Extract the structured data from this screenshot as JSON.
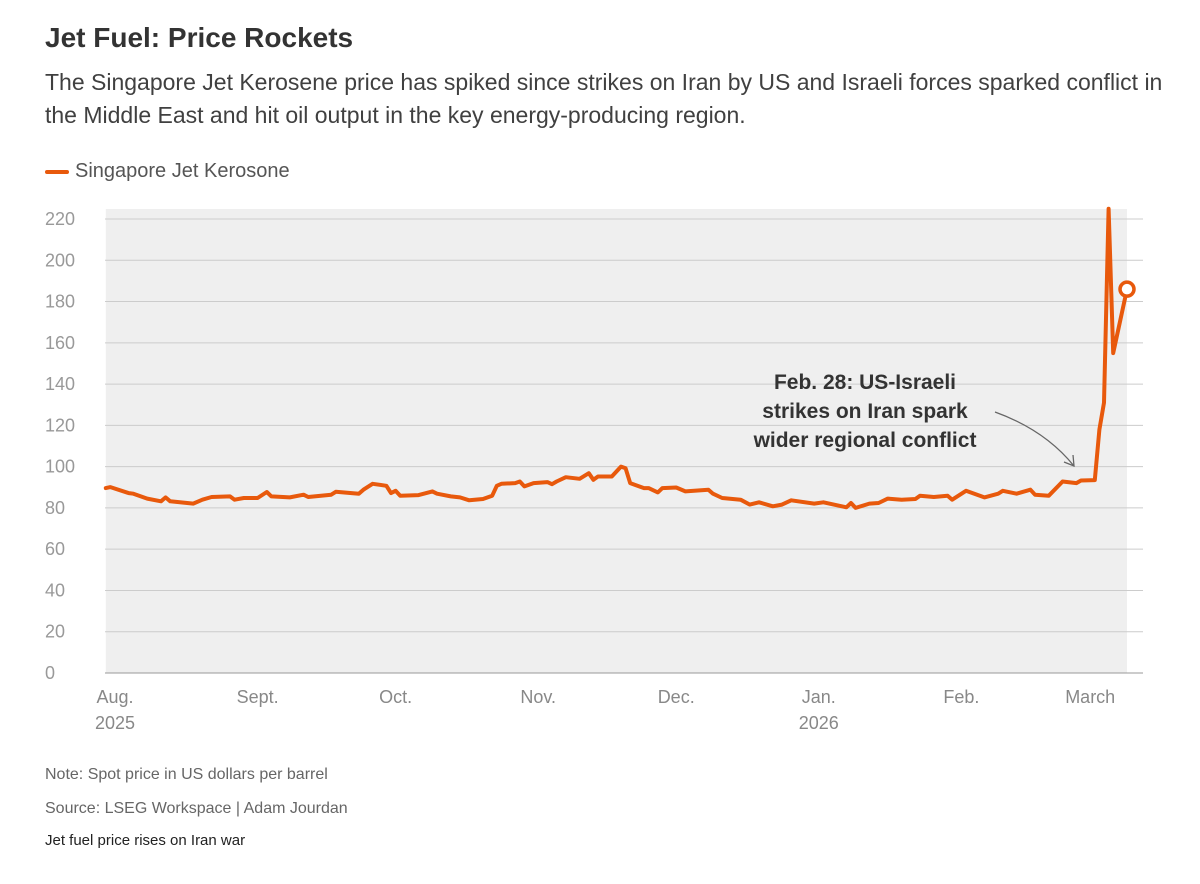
{
  "title": "Jet Fuel: Price Rockets",
  "subtitle": "The Singapore Jet Kerosene price has spiked since strikes on Iran by US and Israeli forces sparked conflict in the Middle East and hit oil output in the key energy-producing region.",
  "note": "Note: Spot price in US dollars per barrel",
  "source": "Source: LSEG Workspace | Adam Jourdan",
  "caption": "Jet fuel price rises on Iran war",
  "colors": {
    "line": "#e8590c",
    "area": "#efefef",
    "grid": "#cccccc"
  },
  "chart_data": {
    "type": "line",
    "title": "Jet Fuel: Price Rockets",
    "ylabel": "",
    "xlabel": "",
    "ylim": [
      0,
      220
    ],
    "yticks": [
      0,
      20,
      40,
      60,
      80,
      100,
      120,
      140,
      160,
      180,
      200,
      220
    ],
    "grid": true,
    "legend_placement": "top-left",
    "xticks": [
      {
        "date": "2025-08-01",
        "label": "Aug.",
        "sublabel": "2025"
      },
      {
        "date": "2025-09-01",
        "label": "Sept.",
        "sublabel": ""
      },
      {
        "date": "2025-10-01",
        "label": "Oct.",
        "sublabel": ""
      },
      {
        "date": "2025-11-01",
        "label": "Nov.",
        "sublabel": ""
      },
      {
        "date": "2025-12-01",
        "label": "Dec.",
        "sublabel": ""
      },
      {
        "date": "2026-01-01",
        "label": "Jan.",
        "sublabel": "2026"
      },
      {
        "date": "2026-02-01",
        "label": "Feb.",
        "sublabel": ""
      },
      {
        "date": "2026-03-01",
        "label": "March",
        "sublabel": ""
      }
    ],
    "series": [
      {
        "name": "Singapore Jet Kerosone",
        "points": [
          [
            "2025-07-30",
            89.6
          ],
          [
            "2025-07-31",
            90.1
          ],
          [
            "2025-08-04",
            87.2
          ],
          [
            "2025-08-05",
            86.9
          ],
          [
            "2025-08-08",
            84.5
          ],
          [
            "2025-08-11",
            83.2
          ],
          [
            "2025-08-12",
            85.1
          ],
          [
            "2025-08-13",
            83.2
          ],
          [
            "2025-08-18",
            82.1
          ],
          [
            "2025-08-20",
            84.0
          ],
          [
            "2025-08-22",
            85.3
          ],
          [
            "2025-08-26",
            85.6
          ],
          [
            "2025-08-27",
            84.0
          ],
          [
            "2025-08-29",
            84.8
          ],
          [
            "2025-09-01",
            84.8
          ],
          [
            "2025-09-03",
            87.7
          ],
          [
            "2025-09-04",
            85.6
          ],
          [
            "2025-09-08",
            85.1
          ],
          [
            "2025-09-11",
            86.4
          ],
          [
            "2025-09-12",
            85.3
          ],
          [
            "2025-09-17",
            86.4
          ],
          [
            "2025-09-18",
            87.8
          ],
          [
            "2025-09-23",
            86.9
          ],
          [
            "2025-09-24",
            88.8
          ],
          [
            "2025-09-26",
            91.7
          ],
          [
            "2025-09-29",
            90.7
          ],
          [
            "2025-09-30",
            87.2
          ],
          [
            "2025-10-01",
            88.3
          ],
          [
            "2025-10-02",
            85.9
          ],
          [
            "2025-10-06",
            86.2
          ],
          [
            "2025-10-09",
            88.0
          ],
          [
            "2025-10-10",
            86.9
          ],
          [
            "2025-10-13",
            85.6
          ],
          [
            "2025-10-15",
            85.1
          ],
          [
            "2025-10-17",
            83.7
          ],
          [
            "2025-10-20",
            84.3
          ],
          [
            "2025-10-22",
            85.9
          ],
          [
            "2025-10-23",
            90.7
          ],
          [
            "2025-10-24",
            91.7
          ],
          [
            "2025-10-27",
            92.0
          ],
          [
            "2025-10-28",
            92.8
          ],
          [
            "2025-10-29",
            90.4
          ],
          [
            "2025-10-31",
            92.0
          ],
          [
            "2025-11-03",
            92.5
          ],
          [
            "2025-11-04",
            91.5
          ],
          [
            "2025-11-05",
            92.8
          ],
          [
            "2025-11-07",
            94.9
          ],
          [
            "2025-11-10",
            94.1
          ],
          [
            "2025-11-12",
            96.8
          ],
          [
            "2025-11-13",
            93.6
          ],
          [
            "2025-11-14",
            95.2
          ],
          [
            "2025-11-17",
            95.2
          ],
          [
            "2025-11-19",
            100.0
          ],
          [
            "2025-11-20",
            99.2
          ],
          [
            "2025-11-21",
            92.0
          ],
          [
            "2025-11-24",
            89.6
          ],
          [
            "2025-11-25",
            89.6
          ],
          [
            "2025-11-27",
            87.5
          ],
          [
            "2025-11-28",
            89.6
          ],
          [
            "2025-12-01",
            89.9
          ],
          [
            "2025-12-03",
            88.0
          ],
          [
            "2025-12-08",
            88.8
          ],
          [
            "2025-12-09",
            86.9
          ],
          [
            "2025-12-11",
            84.8
          ],
          [
            "2025-12-15",
            84.0
          ],
          [
            "2025-12-17",
            81.6
          ],
          [
            "2025-12-19",
            82.7
          ],
          [
            "2025-12-22",
            80.8
          ],
          [
            "2025-12-24",
            81.6
          ],
          [
            "2025-12-26",
            83.7
          ],
          [
            "2025-12-31",
            82.1
          ],
          [
            "2026-01-02",
            82.7
          ],
          [
            "2026-01-07",
            80.3
          ],
          [
            "2026-01-08",
            82.4
          ],
          [
            "2026-01-09",
            80.0
          ],
          [
            "2026-01-12",
            82.1
          ],
          [
            "2026-01-14",
            82.4
          ],
          [
            "2026-01-16",
            84.5
          ],
          [
            "2026-01-19",
            84.0
          ],
          [
            "2026-01-22",
            84.3
          ],
          [
            "2026-01-23",
            85.9
          ],
          [
            "2026-01-26",
            85.3
          ],
          [
            "2026-01-29",
            85.9
          ],
          [
            "2026-01-30",
            84.0
          ],
          [
            "2026-02-02",
            88.3
          ],
          [
            "2026-02-06",
            85.1
          ],
          [
            "2026-02-09",
            86.9
          ],
          [
            "2026-02-10",
            88.3
          ],
          [
            "2026-02-13",
            86.9
          ],
          [
            "2026-02-16",
            88.8
          ],
          [
            "2026-02-17",
            86.4
          ],
          [
            "2026-02-20",
            85.9
          ],
          [
            "2026-02-23",
            92.8
          ],
          [
            "2026-02-26",
            92.0
          ],
          [
            "2026-02-27",
            93.3
          ],
          [
            "2026-03-02",
            93.5
          ],
          [
            "2026-03-03",
            118.0
          ],
          [
            "2026-03-04",
            131.0
          ],
          [
            "2026-03-05",
            225.0
          ],
          [
            "2026-03-06",
            155.0
          ],
          [
            "2026-03-09",
            186.0
          ]
        ]
      }
    ],
    "annotations": [
      {
        "date": "2026-02-28",
        "lines": [
          "Feb. 28: US-Israeli",
          "strikes on Iran spark",
          "wider regional conflict"
        ]
      }
    ]
  }
}
